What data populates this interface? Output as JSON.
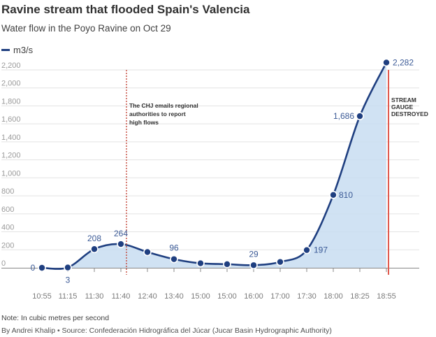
{
  "header": {
    "title": "Ravine stream that flooded Spain's Valencia",
    "subtitle": "Water flow in the Poyo Ravine on Oct 29"
  },
  "legend": {
    "label": "m3/s",
    "color": "#1f3f80"
  },
  "footer": {
    "note": "Note: In cubic metres per second",
    "byline": "By Andrei Khalip • Source: Confederación Hidrográfica del Júcar (Jucar Basin Hydrographic Authority)"
  },
  "colors": {
    "line": "#1f3f80",
    "fill": "#c8ddf1",
    "marker_ring": "#ffffff",
    "event_line": "#c0392b",
    "destroyed_line": "#e05a4f",
    "grid": "#e3e3e3",
    "axis": "#888888"
  },
  "chart_data": {
    "type": "area",
    "title": "Ravine stream that flooded Spain's Valencia",
    "subtitle": "Water flow in the Poyo Ravine on Oct 29",
    "ylabel": "m3/s",
    "ylim": [
      0,
      2300
    ],
    "yticks": [
      0,
      200,
      400,
      600,
      800,
      1000,
      1200,
      1400,
      1600,
      1800,
      2000,
      2200
    ],
    "ytick_labels": [
      "0",
      "200",
      "400",
      "600",
      "800",
      "1,000",
      "1,200",
      "1,400",
      "1,600",
      "1,800",
      "2,000",
      "2,200"
    ],
    "categories": [
      "10:55",
      "11:15",
      "11:30",
      "11:40",
      "12:40",
      "13:40",
      "15:00",
      "15:00",
      "16:00",
      "17:00",
      "17:30",
      "18:00",
      "18:25",
      "18:55"
    ],
    "series": [
      {
        "name": "m3/s",
        "values": [
          0,
          3,
          208,
          264,
          175,
          96,
          50,
          40,
          29,
          65,
          197,
          810,
          1686,
          2282
        ],
        "labels": [
          "0",
          "3",
          "208",
          "264",
          "",
          "96",
          "",
          "",
          "29",
          "",
          "197",
          "810",
          "1,686",
          "2,282"
        ]
      }
    ],
    "annotations": [
      {
        "at_category_index": 3,
        "lines": [
          "The CHJ emails regional",
          "authorities to report",
          "high flows"
        ]
      },
      {
        "at_category_index": 13,
        "lines": [
          "STREAM",
          "GAUGE",
          "DESTROYED"
        ]
      }
    ],
    "grid": true
  }
}
